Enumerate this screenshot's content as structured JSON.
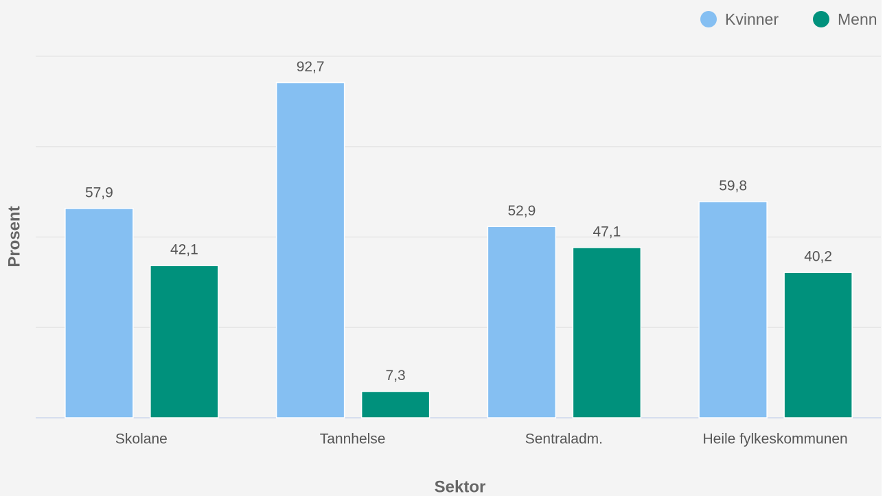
{
  "chart_data": {
    "type": "bar",
    "x_label": "Sektor",
    "y_label": "Prosent",
    "categories": [
      "Skolane",
      "Tannhelse",
      "Sentraladm.",
      "Heile fylkeskommunen"
    ],
    "series": [
      {
        "name": "Kvinner",
        "color": "#85bff2",
        "values": [
          57.9,
          92.7,
          52.9,
          59.8
        ],
        "value_labels": [
          "57,9",
          "92,7",
          "52,9",
          "59,8"
        ]
      },
      {
        "name": "Menn",
        "color": "#00917c",
        "values": [
          42.1,
          7.3,
          47.1,
          40.2
        ],
        "value_labels": [
          "42,1",
          "7,3",
          "47,1",
          "40,2"
        ]
      }
    ],
    "ylim": [
      0,
      100
    ],
    "yticks": [
      0,
      25,
      50,
      75,
      100
    ],
    "grid": true,
    "legend": "top-right"
  }
}
